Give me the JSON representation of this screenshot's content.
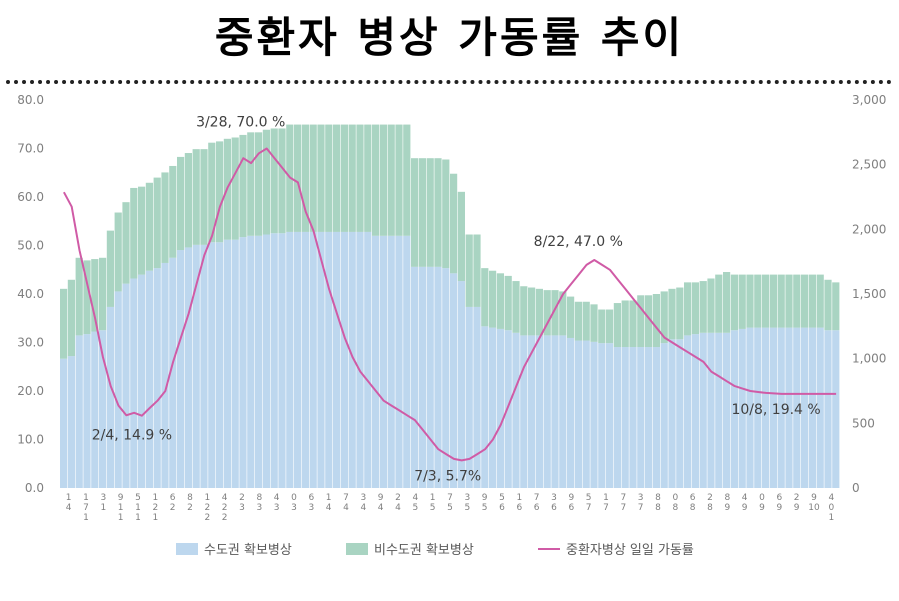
{
  "title": "중환자 병상 가동률 추이",
  "chart_data": {
    "type": "area",
    "left_axis": {
      "min": 0,
      "max": 80,
      "ticks": [
        "0.0",
        "10.0",
        "20.0",
        "30.0",
        "40.0",
        "50.0",
        "60.0",
        "70.0",
        "80.0"
      ]
    },
    "right_axis": {
      "min": 0,
      "max": 3000,
      "ticks": [
        "0",
        "500",
        "1,000",
        "1,500",
        "2,000",
        "2,500",
        "3,000"
      ]
    },
    "x_tick_labels": [
      "1\n4",
      "1\n7\n1",
      "3\n1",
      "9\n1\n1",
      "5\n1\n1",
      "1\n2\n1",
      "6\n2",
      "8\n2",
      "1\n2\n2",
      "4\n2\n2",
      "2\n3",
      "8\n3",
      "4\n3",
      "0\n3",
      "6\n3",
      "1\n4",
      "7\n4",
      "3\n4",
      "9\n4",
      "2\n4",
      "4\n5",
      "1\n5",
      "7\n5",
      "3\n5",
      "9\n5",
      "5\n6",
      "1\n6",
      "7\n6",
      "3\n6",
      "9\n6",
      "5\n7",
      "1\n7",
      "7\n7",
      "3\n7",
      "8\n8",
      "0\n8",
      "6\n8",
      "2\n8",
      "8\n9",
      "4\n9",
      "0\n9",
      "6\n9",
      "2\n9",
      "9\n10",
      "4\n0\n1"
    ],
    "series": [
      {
        "name": "수도권 확보병상",
        "axis": "right",
        "color": "#bdd7ee",
        "values": [
          1000,
          1020,
          1180,
          1190,
          1210,
          1220,
          1400,
          1520,
          1580,
          1620,
          1650,
          1680,
          1700,
          1740,
          1780,
          1840,
          1860,
          1880,
          1880,
          1900,
          1900,
          1920,
          1920,
          1940,
          1950,
          1950,
          1960,
          1970,
          1970,
          1980,
          1980,
          1980,
          1980,
          1980,
          1980,
          1980,
          1980,
          1980,
          1980,
          1980,
          1950,
          1950,
          1950,
          1950,
          1950,
          1710,
          1710,
          1710,
          1710,
          1700,
          1660,
          1600,
          1400,
          1400,
          1250,
          1240,
          1230,
          1220,
          1200,
          1180,
          1180,
          1180,
          1180,
          1180,
          1180,
          1160,
          1140,
          1140,
          1130,
          1120,
          1120,
          1090,
          1090,
          1090,
          1090,
          1090,
          1090,
          1120,
          1150,
          1150,
          1180,
          1190,
          1200,
          1200,
          1200,
          1200,
          1220,
          1230,
          1240,
          1240,
          1240,
          1240,
          1240,
          1240,
          1240,
          1240,
          1240,
          1240,
          1220,
          1220
        ]
      },
      {
        "name": "비수도권 확보병상",
        "axis": "right",
        "color": "#a9d4c2",
        "values": [
          540,
          590,
          600,
          570,
          560,
          560,
          590,
          610,
          630,
          700,
          680,
          680,
          700,
          700,
          710,
          720,
          730,
          740,
          740,
          770,
          780,
          780,
          790,
          790,
          800,
          800,
          810,
          810,
          810,
          830,
          830,
          830,
          830,
          830,
          830,
          830,
          830,
          830,
          830,
          830,
          860,
          860,
          860,
          860,
          860,
          840,
          840,
          840,
          840,
          840,
          770,
          690,
          560,
          560,
          450,
          440,
          430,
          420,
          400,
          380,
          370,
          360,
          350,
          350,
          340,
          320,
          300,
          300,
          290,
          260,
          260,
          340,
          360,
          360,
          400,
          400,
          410,
          400,
          390,
          400,
          410,
          400,
          400,
          420,
          450,
          470,
          430,
          420,
          410,
          410,
          410,
          410,
          410,
          410,
          410,
          410,
          410,
          410,
          390,
          370
        ]
      },
      {
        "name": "중환자병상 일일 가동률",
        "axis": "left",
        "color": "#d05ba6",
        "peak": 70.0,
        "low": 5.7,
        "values": [
          61,
          58,
          49,
          42,
          35,
          27,
          21,
          17,
          15,
          15.5,
          14.9,
          16.5,
          18,
          20,
          26,
          31,
          36,
          42,
          48,
          52,
          58,
          62,
          65,
          68,
          67,
          69,
          70,
          68,
          66,
          64,
          63,
          57,
          53,
          47,
          41,
          36,
          31,
          27,
          24,
          22,
          20,
          18,
          17,
          16,
          15,
          14,
          12,
          10,
          8,
          7,
          6,
          5.7,
          6,
          7,
          8,
          10,
          13,
          17,
          21,
          25,
          28,
          31,
          34,
          37,
          40,
          42,
          44,
          46,
          47,
          46,
          45,
          43,
          41,
          39,
          37,
          35,
          33,
          31,
          30,
          29,
          28,
          27,
          26,
          24,
          23,
          22,
          21,
          20.5,
          20,
          19.8,
          19.6,
          19.5,
          19.4,
          19.4,
          19.4,
          19.4,
          19.4,
          19.4,
          19.4,
          19.4
        ]
      }
    ],
    "annotations": [
      {
        "text": "2/4, 14.9 %",
        "x_index": 10,
        "value": 14.9
      },
      {
        "text": "3/28, 70.0 %",
        "x_index": 26,
        "value": 70.0
      },
      {
        "text": "7/3, 5.7%",
        "x_index": 51,
        "value": 5.7
      },
      {
        "text": "8/22, 47.0 %",
        "x_index": 68,
        "value": 47.0
      },
      {
        "text": "10/8, 19.4 %",
        "x_index": 99,
        "value": 19.4
      }
    ],
    "legend_position": "bottom"
  }
}
